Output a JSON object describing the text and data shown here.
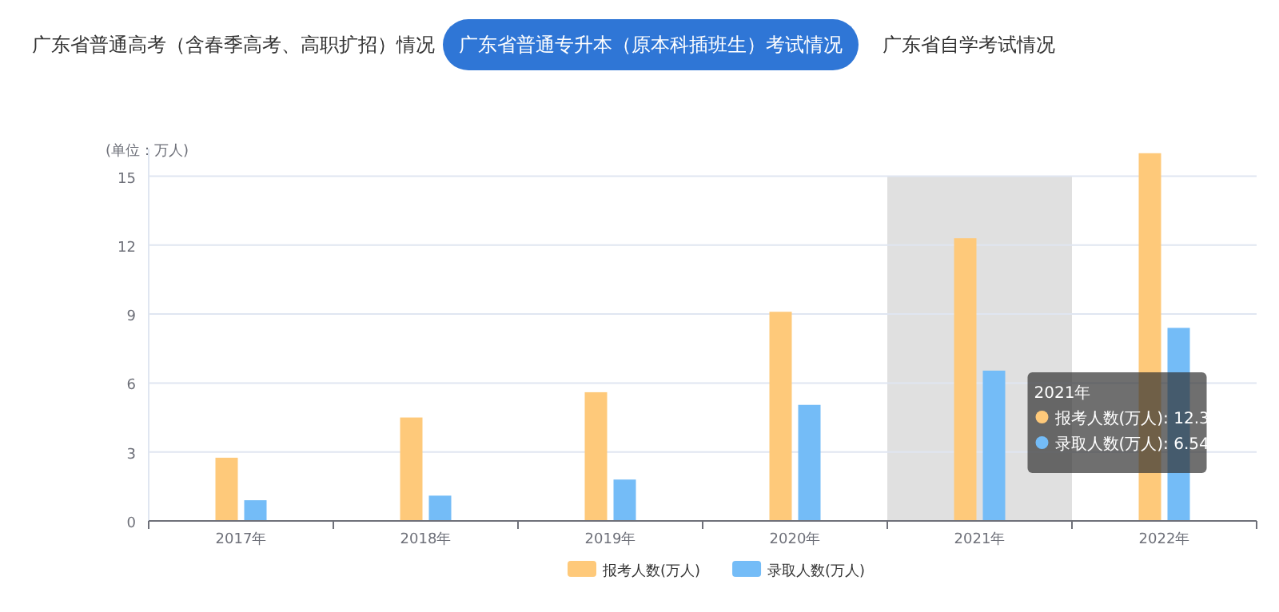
{
  "chart_data": {
    "type": "bar",
    "ylabel": "(单位：万人)",
    "categories": [
      "2017年",
      "2018年",
      "2019年",
      "2020年",
      "2021年",
      "2022年"
    ],
    "series": [
      {
        "name": "报考人数(万人)",
        "color": "#fec97a",
        "values": [
          2.75,
          4.5,
          5.6,
          9.1,
          12.3,
          16
        ]
      },
      {
        "name": "录取人数(万人)",
        "color": "#74bcf7",
        "values": [
          0.9,
          1.1,
          1.8,
          5.05,
          6.54,
          8.4
        ]
      }
    ],
    "ylim": [
      0,
      16.2
    ],
    "yticks": [
      0,
      3,
      6,
      9,
      12,
      15
    ],
    "grid": "y",
    "legend": "bottom",
    "bands": [
      {
        "axis": "x",
        "from": "2021年",
        "to": "2021年",
        "color": "#e0e0e0"
      }
    ],
    "annotations": [
      "广东省普通高考（含春季高考、高职扩招）情况",
      "广东省普通专升本（原本科插班生）考试情况",
      "广东省自学考试情况",
      "2021年",
      "报考人数(万人): 12.3",
      "录取人数(万人): 6.54"
    ]
  }
}
